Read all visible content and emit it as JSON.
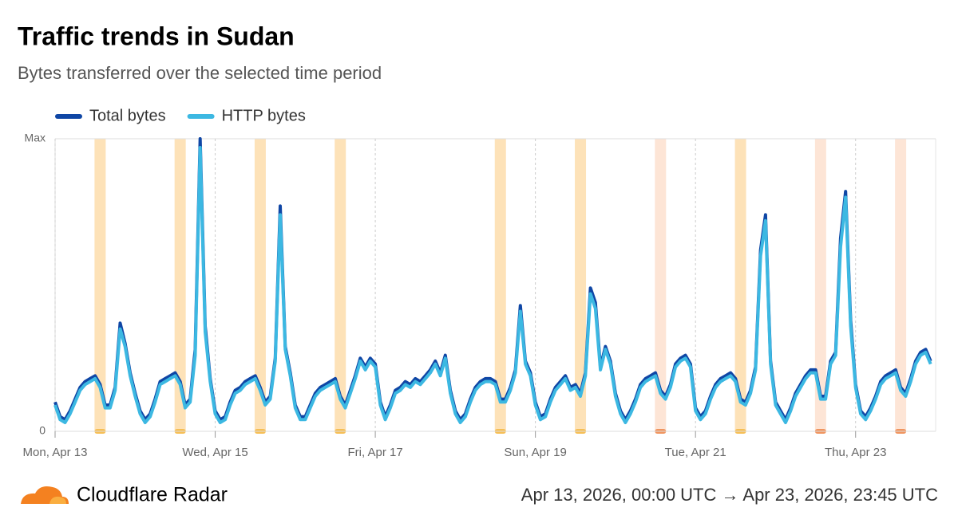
{
  "chart_data": {
    "type": "line",
    "title": "Traffic trends in Sudan",
    "subtitle": "Bytes transferred over the selected time period",
    "brand": "Cloudflare Radar",
    "period": "Apr 13, 2026, 00:00 UTC → Apr 23, 2026, 23:45 UTC",
    "categories": [
      "Mon, Apr 13",
      null,
      null,
      null,
      null,
      null,
      null,
      null,
      null,
      null,
      null,
      null,
      null,
      null,
      null,
      null,
      null,
      null,
      null,
      null,
      null,
      null,
      null,
      null,
      null,
      null,
      null,
      null,
      null,
      null,
      null,
      null,
      "Wed, Apr 15",
      null,
      null,
      null,
      null,
      null,
      null,
      null,
      null,
      null,
      null,
      null,
      null,
      null,
      null,
      null,
      null,
      null,
      null,
      null,
      null,
      null,
      null,
      null,
      null,
      null,
      null,
      null,
      null,
      null,
      null,
      null,
      "Fri, Apr 17",
      null,
      null,
      null,
      null,
      null,
      null,
      null,
      null,
      null,
      null,
      null,
      null,
      null,
      null,
      null,
      null,
      null,
      null,
      null,
      null,
      null,
      null,
      null,
      null,
      null,
      null,
      null,
      null,
      null,
      null,
      null,
      "Sun, Apr 19",
      null,
      null,
      null,
      null,
      null,
      null,
      null,
      null,
      null,
      null,
      null,
      null,
      null,
      null,
      null,
      null,
      null,
      null,
      null,
      null,
      null,
      null,
      null,
      null,
      null,
      null,
      null,
      null,
      null,
      null,
      null,
      "Tue, Apr 21",
      null,
      null,
      null,
      null,
      null,
      null,
      null,
      null,
      null,
      null,
      null,
      null,
      null,
      null,
      null,
      null,
      null,
      null,
      null,
      null,
      null,
      null,
      null,
      null,
      null,
      null,
      null,
      null,
      null,
      null,
      null,
      "Thu, Apr 23",
      null,
      null,
      null,
      null,
      null,
      null,
      null,
      null,
      null,
      null,
      null,
      null,
      null,
      null,
      null
    ],
    "series": [
      {
        "name": "Total bytes",
        "color": "#0f46a5",
        "values": [
          0.1,
          0.05,
          0.04,
          0.07,
          0.11,
          0.15,
          0.17,
          0.18,
          0.19,
          0.16,
          0.09,
          0.09,
          0.15,
          0.37,
          0.3,
          0.2,
          0.13,
          0.07,
          0.04,
          0.06,
          0.11,
          0.17,
          0.18,
          0.19,
          0.2,
          0.17,
          0.09,
          0.11,
          0.28,
          1.0,
          0.36,
          0.18,
          0.07,
          0.04,
          0.05,
          0.1,
          0.14,
          0.15,
          0.17,
          0.18,
          0.19,
          0.15,
          0.1,
          0.12,
          0.25,
          0.77,
          0.29,
          0.2,
          0.09,
          0.05,
          0.05,
          0.09,
          0.13,
          0.15,
          0.16,
          0.17,
          0.18,
          0.12,
          0.09,
          0.14,
          0.19,
          0.25,
          0.22,
          0.25,
          0.23,
          0.1,
          0.05,
          0.09,
          0.14,
          0.15,
          0.17,
          0.16,
          0.18,
          0.17,
          0.19,
          0.21,
          0.24,
          0.2,
          0.26,
          0.14,
          0.07,
          0.04,
          0.06,
          0.11,
          0.15,
          0.17,
          0.18,
          0.18,
          0.17,
          0.11,
          0.11,
          0.15,
          0.21,
          0.43,
          0.24,
          0.2,
          0.1,
          0.05,
          0.06,
          0.11,
          0.15,
          0.17,
          0.19,
          0.15,
          0.16,
          0.13,
          0.2,
          0.49,
          0.44,
          0.22,
          0.29,
          0.24,
          0.13,
          0.07,
          0.04,
          0.07,
          0.11,
          0.16,
          0.18,
          0.19,
          0.2,
          0.14,
          0.12,
          0.16,
          0.23,
          0.25,
          0.26,
          0.23,
          0.08,
          0.05,
          0.07,
          0.12,
          0.16,
          0.18,
          0.19,
          0.2,
          0.18,
          0.11,
          0.1,
          0.14,
          0.22,
          0.62,
          0.74,
          0.24,
          0.1,
          0.07,
          0.04,
          0.08,
          0.13,
          0.16,
          0.19,
          0.21,
          0.21,
          0.12,
          0.12,
          0.24,
          0.27,
          0.66,
          0.82,
          0.38,
          0.16,
          0.07,
          0.05,
          0.08,
          0.12,
          0.17,
          0.19,
          0.2,
          0.21,
          0.15,
          0.13,
          0.18,
          0.24,
          0.27,
          0.28,
          0.24
        ]
      },
      {
        "name": "HTTP bytes",
        "color": "#3cb8e2",
        "values": [
          0.09,
          0.04,
          0.03,
          0.06,
          0.1,
          0.14,
          0.16,
          0.17,
          0.18,
          0.15,
          0.08,
          0.08,
          0.14,
          0.35,
          0.29,
          0.19,
          0.12,
          0.06,
          0.03,
          0.05,
          0.1,
          0.16,
          0.17,
          0.18,
          0.19,
          0.16,
          0.08,
          0.1,
          0.26,
          0.97,
          0.34,
          0.17,
          0.06,
          0.03,
          0.04,
          0.09,
          0.13,
          0.14,
          0.16,
          0.17,
          0.18,
          0.14,
          0.09,
          0.11,
          0.24,
          0.74,
          0.28,
          0.19,
          0.08,
          0.04,
          0.04,
          0.08,
          0.12,
          0.14,
          0.15,
          0.16,
          0.17,
          0.11,
          0.08,
          0.13,
          0.18,
          0.24,
          0.21,
          0.24,
          0.22,
          0.09,
          0.04,
          0.08,
          0.13,
          0.14,
          0.16,
          0.15,
          0.17,
          0.16,
          0.18,
          0.2,
          0.23,
          0.19,
          0.25,
          0.13,
          0.06,
          0.03,
          0.05,
          0.1,
          0.14,
          0.16,
          0.17,
          0.17,
          0.16,
          0.1,
          0.1,
          0.14,
          0.2,
          0.41,
          0.23,
          0.19,
          0.09,
          0.04,
          0.05,
          0.1,
          0.14,
          0.16,
          0.18,
          0.14,
          0.15,
          0.12,
          0.19,
          0.47,
          0.42,
          0.21,
          0.28,
          0.23,
          0.12,
          0.06,
          0.03,
          0.06,
          0.1,
          0.15,
          0.17,
          0.18,
          0.19,
          0.13,
          0.11,
          0.15,
          0.22,
          0.24,
          0.25,
          0.22,
          0.07,
          0.04,
          0.06,
          0.11,
          0.15,
          0.17,
          0.18,
          0.19,
          0.17,
          0.1,
          0.09,
          0.13,
          0.21,
          0.6,
          0.72,
          0.23,
          0.09,
          0.06,
          0.03,
          0.07,
          0.12,
          0.15,
          0.18,
          0.2,
          0.2,
          0.11,
          0.11,
          0.23,
          0.26,
          0.63,
          0.8,
          0.36,
          0.15,
          0.06,
          0.04,
          0.07,
          0.11,
          0.16,
          0.18,
          0.19,
          0.2,
          0.14,
          0.12,
          0.17,
          0.23,
          0.26,
          0.27,
          0.23
        ]
      }
    ],
    "ylim": [
      0,
      1
    ],
    "yticks": [
      0,
      {
        "value": 1,
        "label": "Max"
      }
    ],
    "legend": "top-left",
    "bands": [
      {
        "at": 9,
        "color": "#fde2b8",
        "marker": "#f6bf56"
      },
      {
        "at": 25,
        "color": "#fde2b8",
        "marker": "#f6bf56"
      },
      {
        "at": 41,
        "color": "#fde2b8",
        "marker": "#f6bf56"
      },
      {
        "at": 57,
        "color": "#fde2b8",
        "marker": "#f6bf56"
      },
      {
        "at": 89,
        "color": "#fde2b8",
        "marker": "#f6bf56"
      },
      {
        "at": 105,
        "color": "#fde2b8",
        "marker": "#f6bf56"
      },
      {
        "at": 121,
        "color": "#fde5d6",
        "marker": "#f09560"
      },
      {
        "at": 137,
        "color": "#fde2b8",
        "marker": "#f6bf56"
      },
      {
        "at": 153,
        "color": "#fde5d6",
        "marker": "#f09560"
      },
      {
        "at": 169,
        "color": "#fde5d6",
        "marker": "#f09560"
      }
    ]
  }
}
